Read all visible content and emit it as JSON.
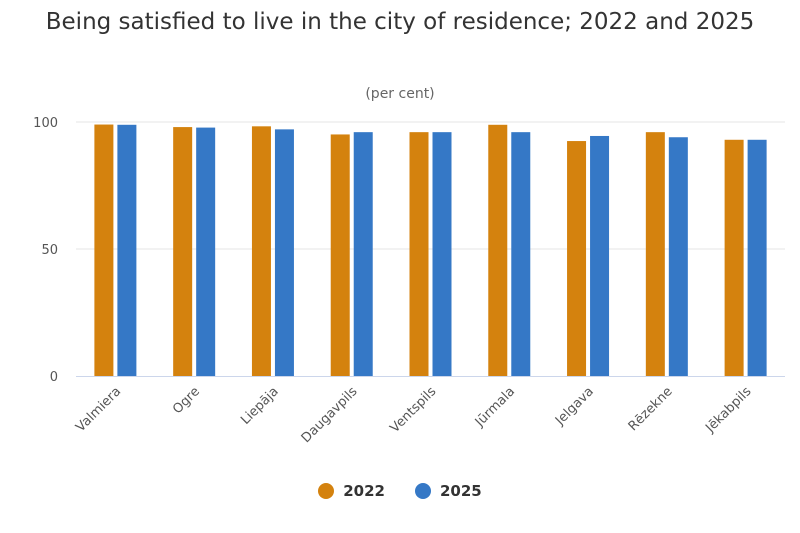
{
  "chart_data": {
    "type": "bar",
    "title": "Being satisfied to live in the city of residence; 2022 and 2025",
    "subtitle": "(per cent)",
    "categories": [
      "Valmiera",
      "Ogre",
      "Liepāja",
      "Daugavpils",
      "Ventspils",
      "Jūrmala",
      "Jelgava",
      "Rēzekne",
      "Jēkabpils"
    ],
    "series": [
      {
        "name": "2022",
        "color": "#d4820e",
        "values": [
          99,
          98,
          98.3,
          95.1,
          96,
          98.9,
          92.5,
          96,
          93
        ]
      },
      {
        "name": "2025",
        "color": "#3578c6",
        "values": [
          98.9,
          97.8,
          97.1,
          96,
          96,
          96,
          94.5,
          94,
          93
        ]
      }
    ],
    "yticks": [
      0,
      50,
      100
    ],
    "ylim": [
      0,
      100
    ],
    "grid": true,
    "legend_placement": "bottom"
  }
}
